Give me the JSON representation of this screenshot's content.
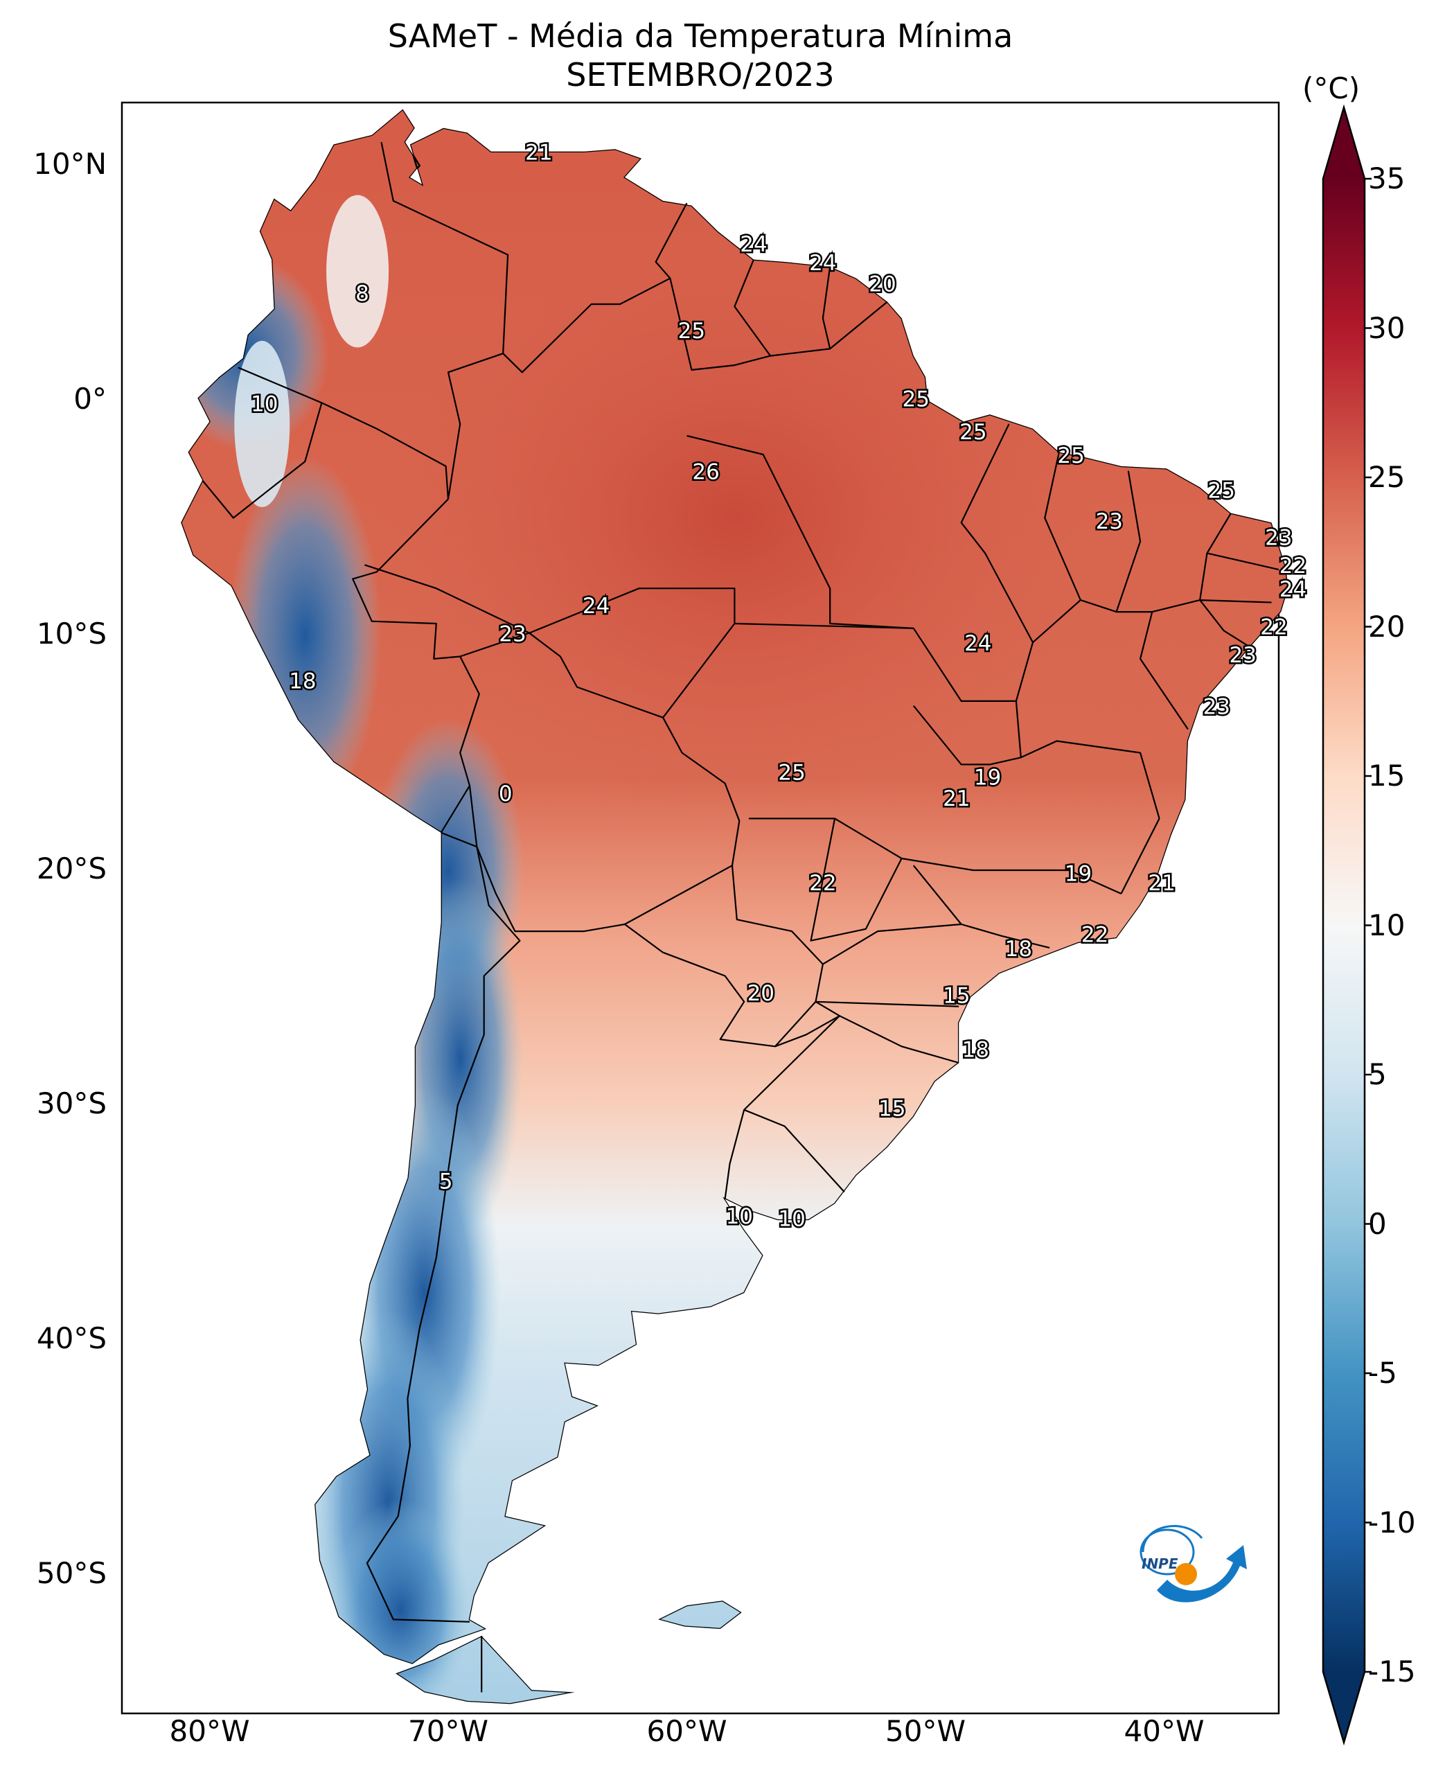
{
  "title": {
    "line1": "SAMeT - Média da Temperatura Mínima",
    "line2": "SETEMBRO/2023"
  },
  "colorbar": {
    "unit": "(°C)",
    "min": -15,
    "max": 35,
    "ticks": [
      "35",
      "30",
      "25",
      "20",
      "15",
      "10",
      "5",
      "0",
      "-5",
      "-10",
      "-15"
    ],
    "colors": [
      "#67001f",
      "#b2182b",
      "#d6604d",
      "#f4a582",
      "#fddbc7",
      "#f7f7f7",
      "#d1e5f0",
      "#92c5de",
      "#4393c3",
      "#2166ac",
      "#053061"
    ]
  },
  "axes": {
    "lat_ticks": [
      "10°N",
      "0°",
      "10°S",
      "20°S",
      "30°S",
      "40°S",
      "50°S"
    ],
    "lon_ticks": [
      "80°W",
      "70°W",
      "60°W",
      "50°W",
      "40°W"
    ]
  },
  "contour_labels": [
    {
      "text": "21",
      "lon": -66.2,
      "lat": 10.5
    },
    {
      "text": "24",
      "lon": -57.2,
      "lat": 6.6
    },
    {
      "text": "24",
      "lon": -54.3,
      "lat": 5.8
    },
    {
      "text": "20",
      "lon": -51.8,
      "lat": 4.9
    },
    {
      "text": "8",
      "lon": -73.6,
      "lat": 4.5
    },
    {
      "text": "25",
      "lon": -59.8,
      "lat": 2.9
    },
    {
      "text": "10",
      "lon": -77.7,
      "lat": -0.2
    },
    {
      "text": "25",
      "lon": -50.4,
      "lat": 0.0
    },
    {
      "text": "25",
      "lon": -48.0,
      "lat": -1.4
    },
    {
      "text": "25",
      "lon": -43.9,
      "lat": -2.4
    },
    {
      "text": "26",
      "lon": -59.2,
      "lat": -3.1
    },
    {
      "text": "25",
      "lon": -37.6,
      "lat": -3.9
    },
    {
      "text": "23",
      "lon": -42.3,
      "lat": -5.2
    },
    {
      "text": "23",
      "lon": -35.2,
      "lat": -5.9
    },
    {
      "text": "22",
      "lon": -34.6,
      "lat": -7.1
    },
    {
      "text": "24",
      "lon": -34.6,
      "lat": -8.1
    },
    {
      "text": "24",
      "lon": -63.8,
      "lat": -8.8
    },
    {
      "text": "22",
      "lon": -35.4,
      "lat": -9.7
    },
    {
      "text": "23",
      "lon": -67.3,
      "lat": -10.0
    },
    {
      "text": "24",
      "lon": -47.8,
      "lat": -10.4
    },
    {
      "text": "23",
      "lon": -36.7,
      "lat": -10.9
    },
    {
      "text": "18",
      "lon": -76.1,
      "lat": -12.0
    },
    {
      "text": "23",
      "lon": -37.8,
      "lat": -13.1
    },
    {
      "text": "25",
      "lon": -55.6,
      "lat": -15.9
    },
    {
      "text": "19",
      "lon": -47.4,
      "lat": -16.1
    },
    {
      "text": "21",
      "lon": -48.7,
      "lat": -17.0
    },
    {
      "text": "0",
      "lon": -67.6,
      "lat": -16.8
    },
    {
      "text": "19",
      "lon": -43.6,
      "lat": -20.2
    },
    {
      "text": "21",
      "lon": -40.1,
      "lat": -20.6
    },
    {
      "text": "22",
      "lon": -54.3,
      "lat": -20.6
    },
    {
      "text": "22",
      "lon": -42.9,
      "lat": -22.8
    },
    {
      "text": "18",
      "lon": -46.1,
      "lat": -23.4
    },
    {
      "text": "20",
      "lon": -56.9,
      "lat": -25.3
    },
    {
      "text": "15",
      "lon": -48.7,
      "lat": -25.4
    },
    {
      "text": "18",
      "lon": -47.9,
      "lat": -27.7
    },
    {
      "text": "15",
      "lon": -51.4,
      "lat": -30.2
    },
    {
      "text": "5",
      "lon": -70.1,
      "lat": -33.3
    },
    {
      "text": "10",
      "lon": -57.8,
      "lat": -34.8
    },
    {
      "text": "10",
      "lon": -55.6,
      "lat": -34.9
    }
  ],
  "logo": {
    "text": "INPE",
    "colors": {
      "blue": "#1479c4",
      "orange": "#f28c00"
    }
  }
}
